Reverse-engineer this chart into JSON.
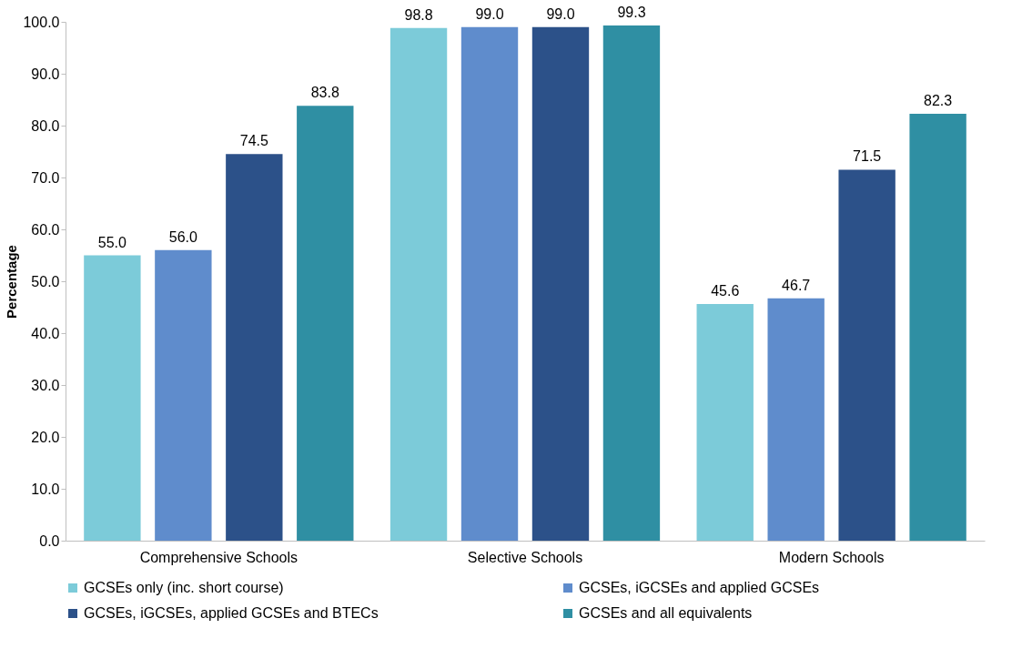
{
  "chart_data": {
    "type": "bar",
    "ylabel": "Percentage",
    "categories": [
      "Comprehensive Schools",
      "Selective Schools",
      "Modern Schools"
    ],
    "series": [
      {
        "name": "GCSEs only (inc. short course)",
        "color": "#7ccbd9",
        "values": [
          55.0,
          98.8,
          45.6
        ],
        "value_labels": [
          "55.0",
          "98.8",
          "45.6"
        ]
      },
      {
        "name": "GCSEs, iGCSEs and applied GCSEs",
        "color": "#5f8ccc",
        "values": [
          56.0,
          99.0,
          46.7
        ],
        "value_labels": [
          "56.0",
          "99.0",
          "46.7"
        ]
      },
      {
        "name": "GCSEs, iGCSEs, applied GCSEs and BTECs",
        "color": "#2c5189",
        "values": [
          74.5,
          99.0,
          71.5
        ],
        "value_labels": [
          "74.5",
          "99.0",
          "71.5"
        ]
      },
      {
        "name": "GCSEs and all equivalents",
        "color": "#2f8fa3",
        "values": [
          83.8,
          99.3,
          82.3
        ],
        "value_labels": [
          "83.8",
          "99.3",
          "82.3"
        ]
      }
    ],
    "ylim": [
      0,
      100
    ],
    "yticks": [
      {
        "value": 0,
        "label": "0.0"
      },
      {
        "value": 10,
        "label": "10.0"
      },
      {
        "value": 20,
        "label": "20.0"
      },
      {
        "value": 30,
        "label": "30.0"
      },
      {
        "value": 40,
        "label": "40.0"
      },
      {
        "value": 50,
        "label": "50.0"
      },
      {
        "value": 60,
        "label": "60.0"
      },
      {
        "value": 70,
        "label": "70.0"
      },
      {
        "value": 80,
        "label": "80.0"
      },
      {
        "value": 90,
        "label": "90.0"
      },
      {
        "value": 100,
        "label": "100.0"
      }
    ],
    "grid": false,
    "legend": "bottom"
  }
}
